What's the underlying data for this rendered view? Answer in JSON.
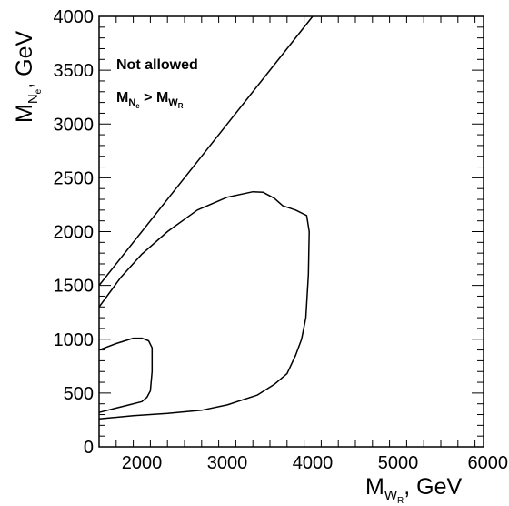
{
  "chart_data": {
    "type": "line",
    "xlabel": {
      "main": "M",
      "sub": "W",
      "subsub": "R",
      "unit": ", GeV"
    },
    "ylabel": {
      "main": "M",
      "sub": "N",
      "subsub": "e",
      "unit": ", GeV"
    },
    "xlim": [
      1500,
      6000
    ],
    "ylim": [
      0,
      4000
    ],
    "x_ticks": [
      2000,
      3000,
      4000,
      5000,
      6000
    ],
    "y_ticks": [
      0,
      500,
      1000,
      1500,
      2000,
      2500,
      3000,
      3500,
      4000
    ],
    "x_tick_labels": [
      "2000",
      "3000",
      "4000",
      "5000",
      "6000"
    ],
    "y_tick_labels": [
      "0",
      "500",
      "1000",
      "1500",
      "2000",
      "2500",
      "3000",
      "3500",
      "4000"
    ],
    "grid": false,
    "annotation": {
      "line1": "Not allowed",
      "line2_main_left": "M",
      "line2_sub_left": "N",
      "line2_subsub_left": "e",
      "line2_op": " > ",
      "line2_main_right": "M",
      "line2_sub_right": "W",
      "line2_subsub_right": "R"
    },
    "series": [
      {
        "id": "diagonal",
        "points": [
          [
            1500,
            1500
          ],
          [
            4000,
            4000
          ]
        ]
      },
      {
        "id": "outer-contour",
        "points": [
          [
            1500,
            1300
          ],
          [
            1750,
            1570
          ],
          [
            2000,
            1790
          ],
          [
            2300,
            2000
          ],
          [
            2650,
            2200
          ],
          [
            3000,
            2320
          ],
          [
            3300,
            2370
          ],
          [
            3420,
            2365
          ],
          [
            3550,
            2310
          ],
          [
            3650,
            2240
          ],
          [
            3800,
            2200
          ],
          [
            3930,
            2150
          ],
          [
            3960,
            2000
          ],
          [
            3950,
            1600
          ],
          [
            3920,
            1200
          ],
          [
            3870,
            1000
          ],
          [
            3800,
            850
          ],
          [
            3700,
            680
          ],
          [
            3550,
            580
          ],
          [
            3350,
            480
          ],
          [
            3000,
            390
          ],
          [
            2700,
            340
          ],
          [
            2300,
            310
          ],
          [
            1900,
            290
          ],
          [
            1500,
            260
          ]
        ]
      },
      {
        "id": "inner-contour",
        "points": [
          [
            1500,
            900
          ],
          [
            1700,
            960
          ],
          [
            1900,
            1010
          ],
          [
            2000,
            1010
          ],
          [
            2080,
            985
          ],
          [
            2120,
            920
          ],
          [
            2120,
            700
          ],
          [
            2100,
            520
          ],
          [
            2060,
            460
          ],
          [
            2000,
            420
          ],
          [
            1850,
            390
          ],
          [
            1700,
            360
          ],
          [
            1500,
            320
          ]
        ]
      }
    ]
  }
}
